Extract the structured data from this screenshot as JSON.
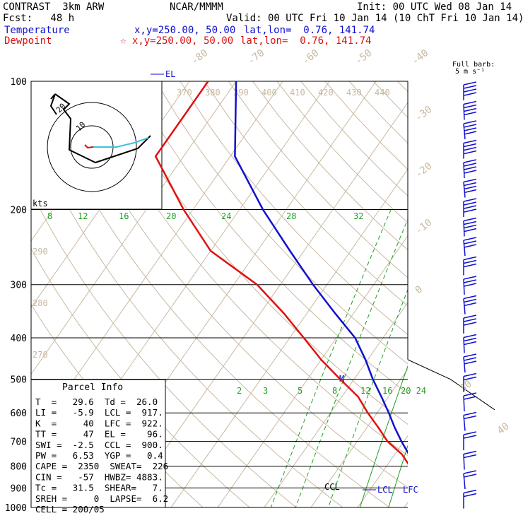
{
  "header": {
    "model": "CONTRAST  3km ARW",
    "center": "NCAR/MMMM",
    "init": "Init: 00 UTC Wed 08 Jan 14",
    "fcst": "Fcst:   48 h",
    "valid": "Valid: 00 UTC Fri 10 Jan 14 (10 ChT Fri 10 Jan 14)",
    "temp_label": "Temperature",
    "temp_xy": "x,y=250.00, 50.00",
    "temp_latlon": "lat,lon=  0.76, 141.74",
    "dew_label": "Dewpoint",
    "dew_xy": "☆ x,y=250.00, 50.00",
    "dew_latlon": "lat,lon=  0.76, 141.74"
  },
  "colors": {
    "temperature": "#1010d0",
    "dewpoint": "#e01010",
    "isotherm": "#c8b8a0",
    "mixing_ratio": "#20a020",
    "grid": "#000000",
    "hodograph_low": "#d01010",
    "hodograph_high": "#40c0e0"
  },
  "chart_data": {
    "type": "line",
    "title": "",
    "xlabel": "",
    "ylabel": "",
    "y_axis": {
      "scale": "log-pressure",
      "ylim": [
        1000,
        100
      ]
    },
    "pressure_levels": [
      "100",
      "200",
      "300",
      "400",
      "500",
      "600",
      "700",
      "800",
      "900",
      "1000"
    ],
    "isotherm_labels": [
      "-80",
      "-70",
      "-60",
      "-50",
      "-40",
      "-30",
      "-20",
      "-10",
      "0",
      "30",
      "40"
    ],
    "theta_labels": [
      "370",
      "380",
      "390",
      "400",
      "410",
      "420",
      "430",
      "440",
      "290",
      "280",
      "270"
    ],
    "mixing_ratio_upper_labels": [
      "8",
      "12",
      "16",
      "20",
      "24",
      "28",
      "32"
    ],
    "mixing_ratio_lower_labels": [
      "2",
      "3",
      "5",
      "8",
      "12",
      "16",
      "20 24"
    ],
    "series": [
      {
        "name": "Temperature",
        "pressure": [
          1000,
          975,
          950,
          925,
          900,
          850,
          800,
          750,
          700,
          650,
          600,
          550,
          500,
          450,
          400,
          350,
          300,
          250,
          200,
          150,
          100
        ],
        "values": [
          29.6,
          27.5,
          26.0,
          24.5,
          23.0,
          19.5,
          15.5,
          13.0,
          9.5,
          6.0,
          2.5,
          -1.5,
          -6.0,
          -10.5,
          -16.0,
          -24.0,
          -33.0,
          -43.0,
          -55.0,
          -69.0,
          -80.0
        ]
      },
      {
        "name": "Dewpoint",
        "pressure": [
          1000,
          975,
          950,
          925,
          900,
          850,
          800,
          750,
          700,
          650,
          600,
          550,
          500,
          450,
          400,
          350,
          300,
          250,
          200,
          150,
          100
        ],
        "values": [
          26.0,
          25.0,
          24.5,
          22.5,
          21.0,
          19.0,
          15.0,
          11.5,
          6.5,
          2.5,
          -2.0,
          -6.5,
          -13.0,
          -20.0,
          -27.0,
          -35.0,
          -45.0,
          -60.0,
          -72.0,
          -86.0,
          -86.0
        ]
      }
    ],
    "annotations": [
      "EL",
      "CCL",
      "LCL",
      "LFC",
      "M"
    ]
  },
  "hodograph": {
    "units": "kts",
    "ring_labels": [
      "10",
      "20"
    ]
  },
  "wind_barbs": {
    "title": "Full barb:",
    "subtitle": "5 m s⁻¹"
  },
  "parcel_info": {
    "title": "Parcel Info",
    "rows": [
      "T  =   29.6  Td =  26.0",
      "LI =   -5.9  LCL =  917.",
      "K  =     40  LFC =  922.",
      "TT =     47  EL =    96.",
      "SWI =  -2.5  CCL =  900.",
      "PW =   6.53  YGP =   0.4",
      "CAPE =  2350  SWEAT=  226",
      "CIN =   -57  HWBZ= 4883.",
      "Tc =   31.5  SHEAR=   7.",
      "SREH =     0  LAPSE=  6.2",
      "CELL = 200/05"
    ]
  }
}
